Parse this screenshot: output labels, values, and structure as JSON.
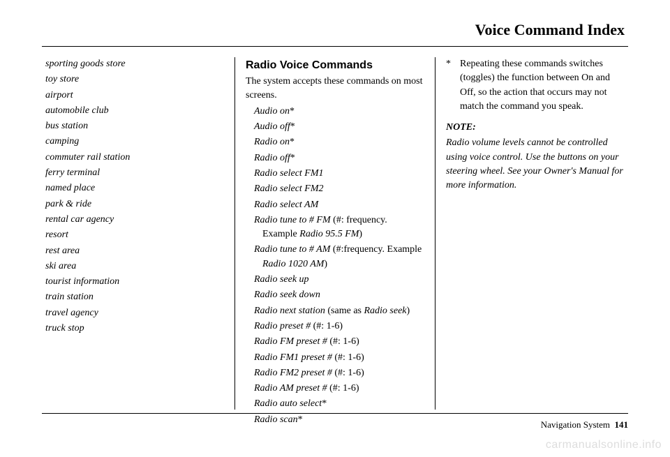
{
  "header": {
    "title": "Voice Command Index"
  },
  "col1": {
    "items": [
      "sporting goods store",
      "toy store",
      "airport",
      "automobile club",
      "bus station",
      "camping",
      "commuter rail station",
      "ferry terminal",
      "named place",
      "park & ride",
      "rental car agency",
      "resort",
      "rest area",
      "ski area",
      "tourist information",
      "train station",
      "travel agency",
      "truck stop"
    ]
  },
  "col2": {
    "heading": "Radio Voice Commands",
    "intro": "The system accepts these commands on most screens.",
    "cmds": {
      "audio_on": "Audio on",
      "star1": "*",
      "audio_off": "Audio off",
      "star2": "*",
      "radio_on": "Radio on",
      "star3": "*",
      "radio_off": "Radio off",
      "star4": "*",
      "fm1": "Radio select FM1",
      "fm2": "Radio select FM2",
      "am": "Radio select AM",
      "tune_fm": "Radio tune to # FM",
      "tune_fm_note1": " (#: frequency. Example ",
      "tune_fm_ex": "Radio 95.5 FM",
      "tune_fm_note2": ")",
      "tune_am": "Radio tune to # AM",
      "tune_am_note1": " (#:frequency. Example ",
      "tune_am_ex": "Radio 1020 AM",
      "tune_am_note2": ")",
      "seek_up": "Radio seek up",
      "seek_down": "Radio seek down",
      "next_station": "Radio next station",
      "next_station_note1": " (same as ",
      "next_station_ex": "Radio seek",
      "next_station_note2": ")",
      "preset": "Radio preset #",
      "preset_note": " (#: 1-6)",
      "fm_preset": "Radio FM preset #",
      "fm_preset_note": " (#: 1-6)",
      "fm1_preset": "Radio FM1 preset #",
      "fm1_preset_note": " (#: 1-6)",
      "fm2_preset": "Radio FM2 preset #",
      "fm2_preset_note": " (#: 1-6)",
      "am_preset": "Radio AM preset #",
      "am_preset_note": " (#: 1-6)",
      "auto_select": "Radio auto select",
      "star5": "*",
      "scan": "Radio scan",
      "star6": "*"
    }
  },
  "col3": {
    "star": "*",
    "star_note": "Repeating these commands switches (toggles) the function between On and Off, so the action that occurs may not match the command you speak.",
    "note_heading": "NOTE:",
    "note_body": "Radio volume levels cannot be controlled using voice control. Use the buttons on your steering wheel. See your Owner's Manual for more information."
  },
  "footer": {
    "label": "Navigation System",
    "page": "141"
  },
  "watermark": "carmanualsonline.info",
  "style": {
    "background": "#ffffff",
    "text_color": "#000000",
    "watermark_color": "#dddddd",
    "body_font": "Times New Roman",
    "heading_font": "Arial",
    "body_fontsize": 14,
    "heading_fontsize": 16,
    "header_fontsize": 22,
    "rule_color": "#000000"
  }
}
